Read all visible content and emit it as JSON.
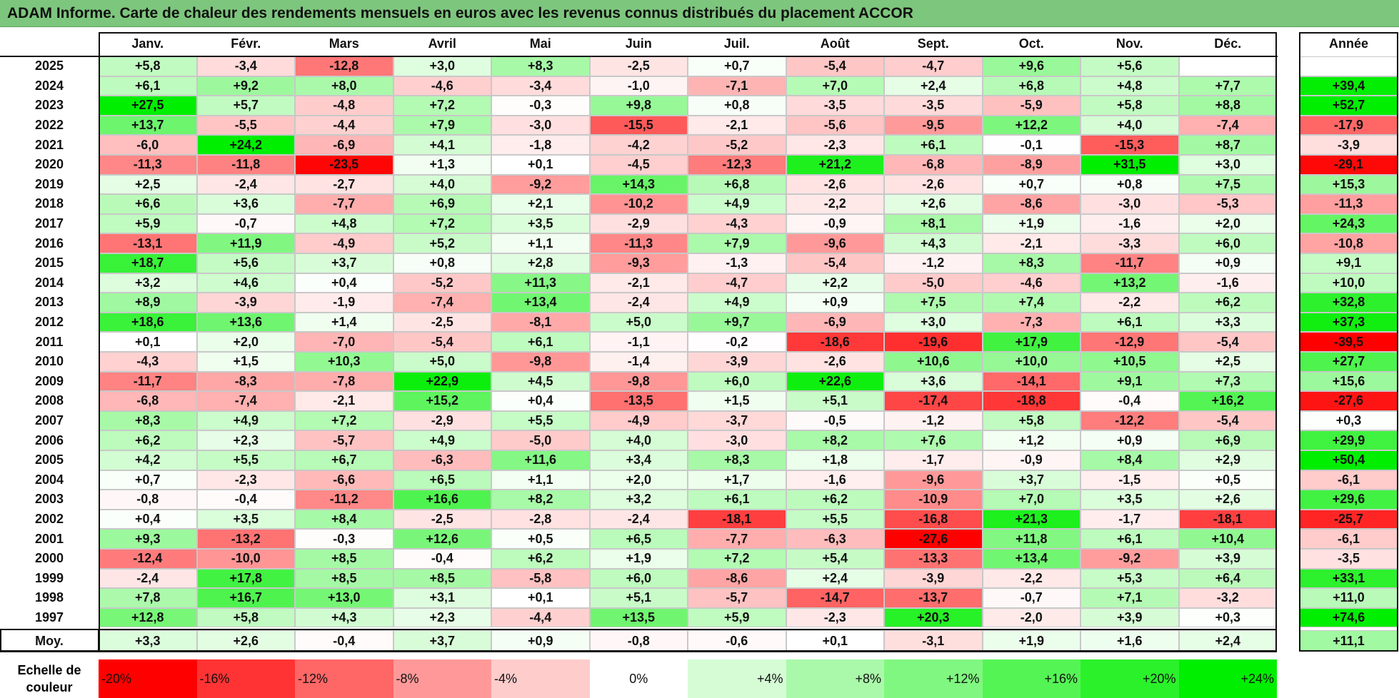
{
  "title": "ADAM Informe. Carte de chaleur des rendements mensuels en euros avec les revenus connus distribués du placement ACCOR",
  "chart_data": {
    "type": "heatmap",
    "title": "ADAM Informe. Carte de chaleur des rendements mensuels en euros avec les revenus connus distribués du placement ACCOR",
    "columns": [
      "Janv.",
      "Févr.",
      "Mars",
      "Avril",
      "Mai",
      "Juin",
      "Juil.",
      "Août",
      "Sept.",
      "Oct.",
      "Nov.",
      "Déc."
    ],
    "annual_header": "Année",
    "rows": [
      {
        "year": "2025",
        "values": [
          "+5,8",
          "-3,4",
          "-12,8",
          "+3,0",
          "+8,3",
          "-2,5",
          "+0,7",
          "-5,4",
          "-4,7",
          "+9,6",
          "+5,6",
          ""
        ],
        "annual": ""
      },
      {
        "year": "2024",
        "values": [
          "+6,1",
          "+9,2",
          "+8,0",
          "-4,6",
          "-3,4",
          "-1,0",
          "-7,1",
          "+7,0",
          "+2,4",
          "+6,8",
          "+4,8",
          "+7,7"
        ],
        "annual": "+39,4"
      },
      {
        "year": "2023",
        "values": [
          "+27,5",
          "+5,7",
          "-4,8",
          "+7,2",
          "-0,3",
          "+9,8",
          "+0,8",
          "-3,5",
          "-3,5",
          "-5,9",
          "+5,8",
          "+8,8"
        ],
        "annual": "+52,7"
      },
      {
        "year": "2022",
        "values": [
          "+13,7",
          "-5,5",
          "-4,4",
          "+7,9",
          "-3,0",
          "-15,5",
          "-2,1",
          "-5,6",
          "-9,5",
          "+12,2",
          "+4,0",
          "-7,4"
        ],
        "annual": "-17,9"
      },
      {
        "year": "2021",
        "values": [
          "-6,0",
          "+24,2",
          "-6,9",
          "+4,1",
          "-1,8",
          "-4,2",
          "-5,2",
          "-2,3",
          "+6,1",
          "-0,1",
          "-15,3",
          "+8,7"
        ],
        "annual": "-3,9"
      },
      {
        "year": "2020",
        "values": [
          "-11,3",
          "-11,8",
          "-23,5",
          "+1,3",
          "+0,1",
          "-4,5",
          "-12,3",
          "+21,2",
          "-6,8",
          "-8,9",
          "+31,5",
          "+3,0"
        ],
        "annual": "-29,1"
      },
      {
        "year": "2019",
        "values": [
          "+2,5",
          "-2,4",
          "-2,7",
          "+4,0",
          "-9,2",
          "+14,3",
          "+6,8",
          "-2,6",
          "-2,6",
          "+0,7",
          "+0,8",
          "+7,5"
        ],
        "annual": "+15,3"
      },
      {
        "year": "2018",
        "values": [
          "+6,6",
          "+3,6",
          "-7,7",
          "+6,9",
          "+2,1",
          "-10,2",
          "+4,9",
          "-2,2",
          "+2,6",
          "-8,6",
          "-3,0",
          "-5,3"
        ],
        "annual": "-11,3"
      },
      {
        "year": "2017",
        "values": [
          "+5,9",
          "-0,7",
          "+4,8",
          "+7,2",
          "+3,5",
          "-2,9",
          "-4,3",
          "-0,9",
          "+8,1",
          "+1,9",
          "-1,6",
          "+2,0"
        ],
        "annual": "+24,3"
      },
      {
        "year": "2016",
        "values": [
          "-13,1",
          "+11,9",
          "-4,9",
          "+5,2",
          "+1,1",
          "-11,3",
          "+7,9",
          "-9,6",
          "+4,3",
          "-2,1",
          "-3,3",
          "+6,0"
        ],
        "annual": "-10,8"
      },
      {
        "year": "2015",
        "values": [
          "+18,7",
          "+5,6",
          "+3,7",
          "+0,8",
          "+2,8",
          "-9,3",
          "-1,3",
          "-5,4",
          "-1,2",
          "+8,3",
          "-11,7",
          "+0,9"
        ],
        "annual": "+9,1"
      },
      {
        "year": "2014",
        "values": [
          "+3,2",
          "+4,6",
          "+0,4",
          "-5,2",
          "+11,3",
          "-2,1",
          "-4,7",
          "+2,2",
          "-5,0",
          "-4,6",
          "+13,2",
          "-1,6"
        ],
        "annual": "+10,0"
      },
      {
        "year": "2013",
        "values": [
          "+8,9",
          "-3,9",
          "-1,9",
          "-7,4",
          "+13,4",
          "-2,4",
          "+4,9",
          "+0,9",
          "+7,5",
          "+7,4",
          "-2,2",
          "+6,2"
        ],
        "annual": "+32,8"
      },
      {
        "year": "2012",
        "values": [
          "+18,6",
          "+13,6",
          "+1,4",
          "-2,5",
          "-8,1",
          "+5,0",
          "+9,7",
          "-6,9",
          "+3,0",
          "-7,3",
          "+6,1",
          "+3,3"
        ],
        "annual": "+37,3"
      },
      {
        "year": "2011",
        "values": [
          "+0,1",
          "+2,0",
          "-7,0",
          "-5,4",
          "+6,1",
          "-1,1",
          "-0,2",
          "-18,6",
          "-19,6",
          "+17,9",
          "-12,9",
          "-5,4"
        ],
        "annual": "-39,5"
      },
      {
        "year": "2010",
        "values": [
          "-4,3",
          "+1,5",
          "+10,3",
          "+5,0",
          "-9,8",
          "-1,4",
          "-3,9",
          "-2,6",
          "+10,6",
          "+10,0",
          "+10,5",
          "+2,5"
        ],
        "annual": "+27,7"
      },
      {
        "year": "2009",
        "values": [
          "-11,7",
          "-8,3",
          "-7,8",
          "+22,9",
          "+4,5",
          "-9,8",
          "+6,0",
          "+22,6",
          "+3,6",
          "-14,1",
          "+9,1",
          "+7,3"
        ],
        "annual": "+15,6"
      },
      {
        "year": "2008",
        "values": [
          "-6,8",
          "-7,4",
          "-2,1",
          "+15,2",
          "+0,4",
          "-13,5",
          "+1,5",
          "+5,1",
          "-17,4",
          "-18,8",
          "-0,4",
          "+16,2"
        ],
        "annual": "-27,6"
      },
      {
        "year": "2007",
        "values": [
          "+8,3",
          "+4,9",
          "+7,2",
          "-2,9",
          "+5,5",
          "-4,9",
          "-3,7",
          "-0,5",
          "-1,2",
          "+5,8",
          "-12,2",
          "-5,4"
        ],
        "annual": "+0,3"
      },
      {
        "year": "2006",
        "values": [
          "+6,2",
          "+2,3",
          "-5,7",
          "+4,9",
          "-5,0",
          "+4,0",
          "-3,0",
          "+8,2",
          "+7,6",
          "+1,2",
          "+0,9",
          "+6,9"
        ],
        "annual": "+29,9"
      },
      {
        "year": "2005",
        "values": [
          "+4,2",
          "+5,5",
          "+6,7",
          "-6,3",
          "+11,6",
          "+3,4",
          "+8,3",
          "+1,8",
          "-1,7",
          "-0,9",
          "+8,4",
          "+2,9"
        ],
        "annual": "+50,4"
      },
      {
        "year": "2004",
        "values": [
          "+0,7",
          "-2,3",
          "-6,6",
          "+6,5",
          "+1,1",
          "+2,0",
          "+1,7",
          "-1,6",
          "-9,6",
          "+3,7",
          "-1,5",
          "+0,5"
        ],
        "annual": "-6,1"
      },
      {
        "year": "2003",
        "values": [
          "-0,8",
          "-0,4",
          "-11,2",
          "+16,6",
          "+8,2",
          "+3,2",
          "+6,1",
          "+6,2",
          "-10,9",
          "+7,0",
          "+3,5",
          "+2,6"
        ],
        "annual": "+29,6"
      },
      {
        "year": "2002",
        "values": [
          "+0,4",
          "+3,5",
          "+8,4",
          "-2,5",
          "-2,8",
          "-2,4",
          "-18,1",
          "+5,5",
          "-16,8",
          "+21,3",
          "-1,7",
          "-18,1"
        ],
        "annual": "-25,7"
      },
      {
        "year": "2001",
        "values": [
          "+9,3",
          "-13,2",
          "-0,3",
          "+12,6",
          "+0,5",
          "+6,5",
          "-7,7",
          "-6,3",
          "-27,6",
          "+11,8",
          "+6,1",
          "+10,4"
        ],
        "annual": "-6,1"
      },
      {
        "year": "2000",
        "values": [
          "-12,4",
          "-10,0",
          "+8,5",
          "-0,4",
          "+6,2",
          "+1,9",
          "+7,2",
          "+5,4",
          "-13,3",
          "+13,4",
          "-9,2",
          "+3,9"
        ],
        "annual": "-3,5"
      },
      {
        "year": "1999",
        "values": [
          "-2,4",
          "+17,8",
          "+8,5",
          "+8,5",
          "-5,8",
          "+6,0",
          "-8,6",
          "+2,4",
          "-3,9",
          "-2,2",
          "+5,3",
          "+6,4"
        ],
        "annual": "+33,1"
      },
      {
        "year": "1998",
        "values": [
          "+7,8",
          "+16,7",
          "+13,0",
          "+3,1",
          "+0,1",
          "+5,1",
          "-5,7",
          "-14,7",
          "-13,7",
          "-0,7",
          "+7,1",
          "-3,2"
        ],
        "annual": "+11,0"
      },
      {
        "year": "1997",
        "values": [
          "+12,8",
          "+5,8",
          "+4,3",
          "+2,3",
          "-4,4",
          "+13,5",
          "+5,9",
          "-2,3",
          "+20,3",
          "-2,0",
          "+3,9",
          "+0,3"
        ],
        "annual": "+74,6"
      }
    ],
    "average": {
      "label": "Moy.",
      "values": [
        "+3,3",
        "+2,6",
        "-0,4",
        "+3,7",
        "+0,9",
        "-0,8",
        "-0,6",
        "+0,1",
        "-3,1",
        "+1,9",
        "+1,6",
        "+2,4"
      ],
      "annual": "+11,1"
    },
    "color_scale": {
      "label": "Echelle de couleur",
      "items": [
        "-20%",
        "-16%",
        "-12%",
        "-8%",
        "-4%",
        "0%",
        "+4%",
        "+8%",
        "+12%",
        "+16%",
        "+20%",
        "+24%"
      ],
      "negative_color": "#ff0000",
      "neutral_color": "#ffffff",
      "positive_color": "#00ee00"
    }
  }
}
